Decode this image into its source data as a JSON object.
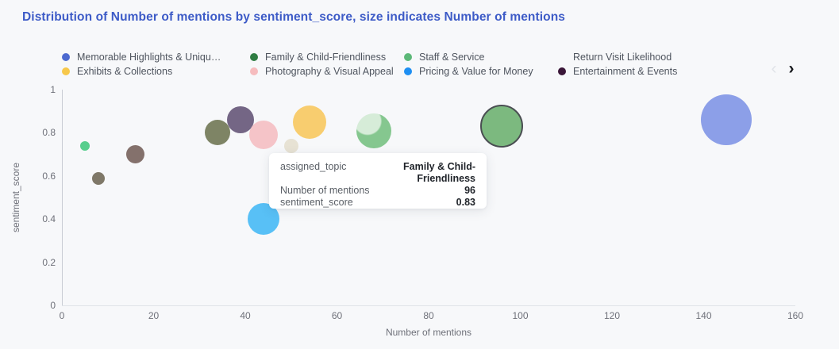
{
  "title": "Distribution of Number of mentions by sentiment_score, size indicates Number of mentions",
  "colors": {
    "background": "#F7F8FA",
    "title": "#3D5BC7",
    "axis_text": "#6E7079",
    "legend_text": "#4E545E"
  },
  "legend": {
    "items": [
      {
        "label": "Memorable Highlights & Uniqu…",
        "color": "#4D6AD0",
        "has_dot": true
      },
      {
        "label": "Family & Child-Friendliness",
        "color": "#2F7D43",
        "has_dot": true
      },
      {
        "label": "Staff & Service",
        "color": "#5CB878",
        "has_dot": true
      },
      {
        "label": "Return Visit Likelihood",
        "color": "",
        "has_dot": false
      },
      {
        "label": "Exhibits & Collections",
        "color": "#F7C84B",
        "has_dot": true
      },
      {
        "label": "Photography & Visual Appeal",
        "color": "#F6BCBE",
        "has_dot": true
      },
      {
        "label": "Pricing & Value for Money",
        "color": "#1E8FF2",
        "has_dot": true
      },
      {
        "label": "Entertainment & Events",
        "color": "#3A1638",
        "has_dot": true
      }
    ],
    "prev_icon": "‹",
    "next_icon": "›"
  },
  "chart_data": {
    "type": "scatter",
    "title": "Distribution of Number of mentions by sentiment_score, size indicates Number of mentions",
    "xlabel": "Number of mentions",
    "ylabel": "sentiment_score",
    "xlim": [
      0,
      160
    ],
    "ylim": [
      0,
      1
    ],
    "x_ticks": [
      "0",
      "20",
      "40",
      "60",
      "80",
      "100",
      "120",
      "140",
      "160"
    ],
    "y_ticks": [
      "0",
      "0.2",
      "0.4",
      "0.6",
      "0.8",
      "1"
    ],
    "grid": false,
    "legend_position": "top",
    "size_encodes": "Number of mentions",
    "points": [
      {
        "name": "bubble-green-small",
        "x": 5,
        "y": 0.74,
        "r": 6,
        "color": "#57CE8D"
      },
      {
        "name": "bubble-gray-small",
        "x": 8,
        "y": 0.59,
        "r": 8,
        "color": "#7F7868"
      },
      {
        "name": "bubble-brown",
        "x": 16,
        "y": 0.7,
        "r": 11.5,
        "color": "#84716C"
      },
      {
        "name": "bubble-olive",
        "x": 34,
        "y": 0.8,
        "r": 16,
        "color": "#7E8465"
      },
      {
        "name": "bubble-entertainment-events",
        "topic": "Entertainment & Events",
        "x": 39,
        "y": 0.86,
        "r": 17,
        "color": "#746685"
      },
      {
        "name": "bubble-photography-visual-appeal",
        "topic": "Photography & Visual Appeal",
        "x": 44,
        "y": 0.79,
        "r": 18,
        "color": "#F5C4C8"
      },
      {
        "name": "bubble-exhibits-collections",
        "topic": "Exhibits & Collections",
        "x": 54,
        "y": 0.85,
        "r": 21,
        "color": "#F8CD6F"
      },
      {
        "name": "bubble-beige-faded",
        "x": 50,
        "y": 0.74,
        "r": 9,
        "color": "#E7E2D4"
      },
      {
        "name": "bubble-staff-service",
        "topic": "Staff & Service",
        "x": 68,
        "y": 0.81,
        "r": 22,
        "color": "#85C78F",
        "highlight": true
      },
      {
        "name": "bubble-family-child-friendliness",
        "topic": "Family & Child-Friendliness",
        "x": 96,
        "y": 0.83,
        "r": 27,
        "color": "#7CB97F",
        "border": "#4A4E52"
      },
      {
        "name": "bubble-pricing-value-for-money",
        "topic": "Pricing & Value for Money",
        "x": 44,
        "y": 0.4,
        "r": 20,
        "color": "#58C0F6"
      },
      {
        "name": "bubble-memorable-highlights",
        "topic": "Memorable Highlights & Uniqu…",
        "x": 145,
        "y": 0.86,
        "r": 32,
        "color": "#8C9FE8"
      }
    ]
  },
  "tooltip": {
    "rows": [
      {
        "label": "assigned_topic",
        "value": "Family & Child-Friendliness"
      },
      {
        "label": "Number of mentions",
        "value": "96"
      },
      {
        "label": "sentiment_score",
        "value": "0.83"
      }
    ]
  }
}
